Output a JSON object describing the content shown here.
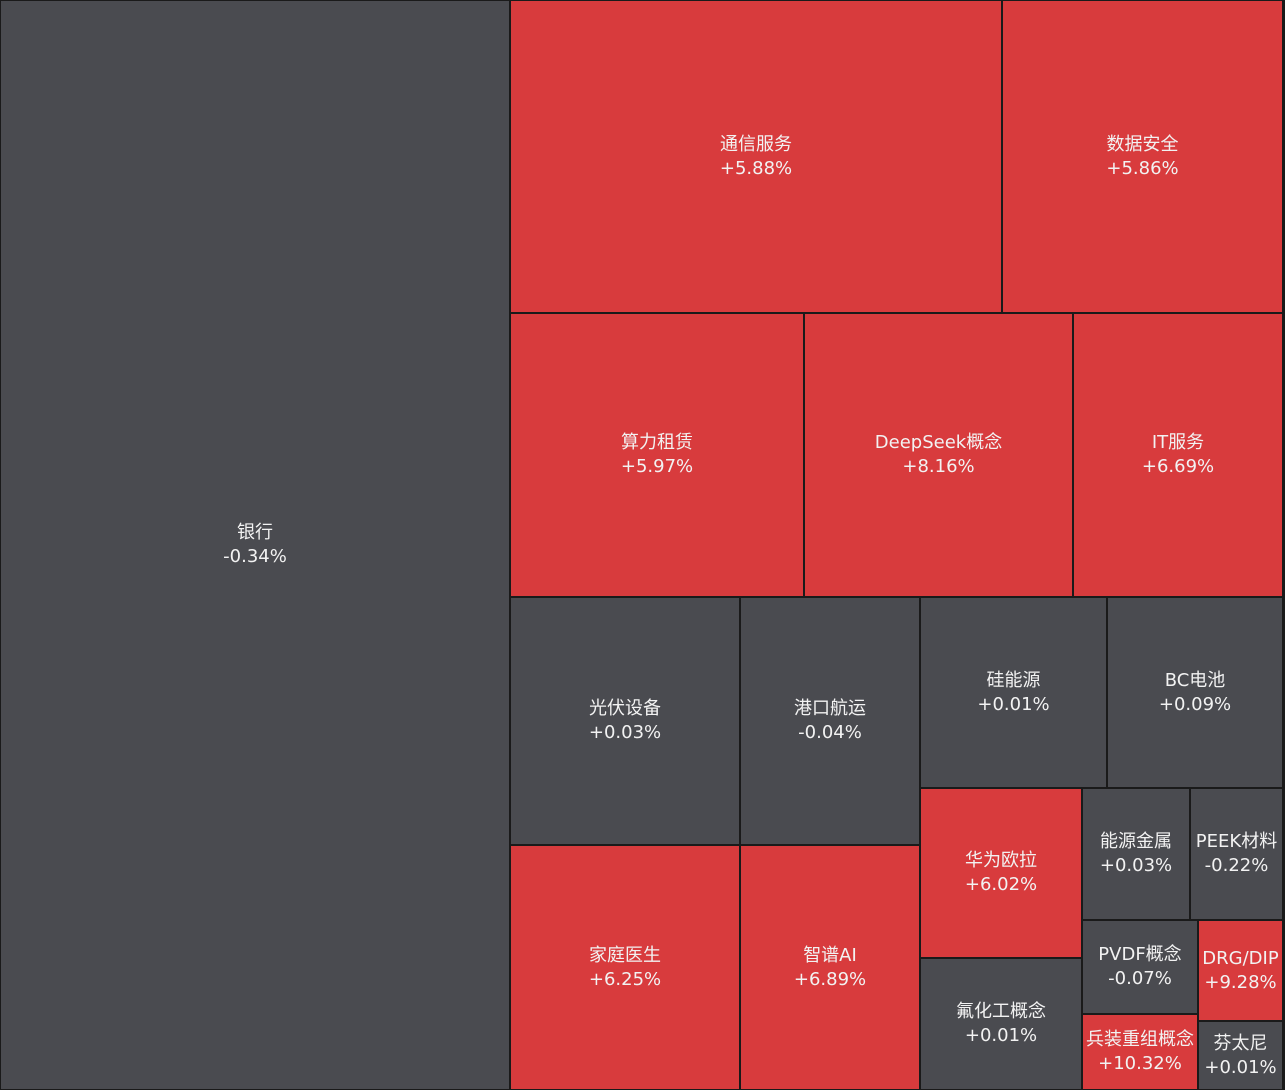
{
  "chart_data": {
    "type": "treemap",
    "colors": {
      "up": "#d83b3d",
      "flat": "#4a4b50",
      "border": "#1a1a1a"
    },
    "tiles": [
      {
        "name": "银行",
        "change": "-0.34%",
        "status": "flat"
      },
      {
        "name": "通信服务",
        "change": "+5.88%",
        "status": "up"
      },
      {
        "name": "数据安全",
        "change": "+5.86%",
        "status": "up"
      },
      {
        "name": "算力租赁",
        "change": "+5.97%",
        "status": "up"
      },
      {
        "name": "DeepSeek概念",
        "change": "+8.16%",
        "status": "up"
      },
      {
        "name": "IT服务",
        "change": "+6.69%",
        "status": "up"
      },
      {
        "name": "光伏设备",
        "change": "+0.03%",
        "status": "flat"
      },
      {
        "name": "港口航运",
        "change": "-0.04%",
        "status": "flat"
      },
      {
        "name": "硅能源",
        "change": "+0.01%",
        "status": "flat"
      },
      {
        "name": "BC电池",
        "change": "+0.09%",
        "status": "flat"
      },
      {
        "name": "家庭医生",
        "change": "+6.25%",
        "status": "up"
      },
      {
        "name": "智谱AI",
        "change": "+6.89%",
        "status": "up"
      },
      {
        "name": "华为欧拉",
        "change": "+6.02%",
        "status": "up"
      },
      {
        "name": "能源金属",
        "change": "+0.03%",
        "status": "flat"
      },
      {
        "name": "PEEK材料",
        "change": "-0.22%",
        "status": "flat"
      },
      {
        "name": "氟化工概念",
        "change": "+0.01%",
        "status": "flat"
      },
      {
        "name": "PVDF概念",
        "change": "-0.07%",
        "status": "flat"
      },
      {
        "name": "DRG/DIP",
        "change": "+9.28%",
        "status": "up"
      },
      {
        "name": "兵装重组概念",
        "change": "+10.32%",
        "status": "up"
      },
      {
        "name": "芬太尼",
        "change": "+0.01%",
        "status": "flat"
      }
    ]
  }
}
